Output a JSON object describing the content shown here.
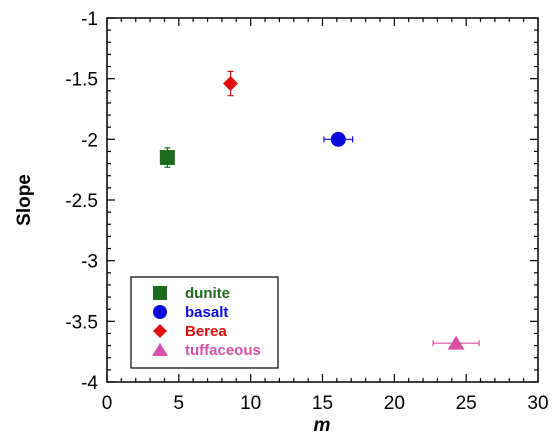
{
  "chart_data": {
    "type": "scatter",
    "title": "",
    "xlabel": "m",
    "ylabel": "Slope",
    "xlim": [
      0,
      30
    ],
    "ylim": [
      -4,
      -1
    ],
    "x_ticks": [
      0,
      5,
      10,
      15,
      20,
      25,
      30
    ],
    "x_tick_labels": [
      "0",
      "5",
      "10",
      "15",
      "20",
      "25",
      "30"
    ],
    "y_ticks": [
      -1,
      -1.5,
      -2,
      -2.5,
      -3,
      -3.5,
      -4
    ],
    "y_tick_labels": [
      "-1",
      "-1.5",
      "-2",
      "-2.5",
      "-3",
      "-3.5",
      "-4"
    ],
    "grid": false,
    "legend_position": "bottom-left",
    "series": [
      {
        "name": "dunite",
        "marker": "square",
        "color": "#1e6b1e",
        "x": 4.2,
        "y": -2.15,
        "x_err": 0,
        "y_err": 0.08
      },
      {
        "name": "basalt",
        "marker": "circle",
        "color": "#0a0adc",
        "x": 16.1,
        "y": -2.0,
        "x_err": 1.0,
        "y_err": 0
      },
      {
        "name": "Berea",
        "marker": "diamond",
        "color": "#e00d0d",
        "x": 8.6,
        "y": -1.54,
        "x_err": 0,
        "y_err": 0.1
      },
      {
        "name": "tuffaceous",
        "marker": "triangle",
        "color": "#d650a8",
        "x": 24.3,
        "y": -3.68,
        "x_err": 1.6,
        "y_err": 0
      }
    ]
  }
}
